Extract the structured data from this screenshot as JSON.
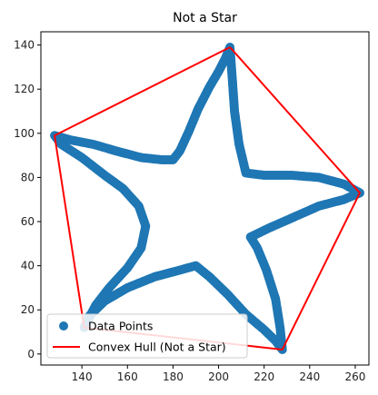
{
  "chart_data": {
    "type": "scatter",
    "title": "Not a Star",
    "xlabel": "",
    "ylabel": "",
    "xlim": [
      122,
      266
    ],
    "ylim": [
      -5,
      146
    ],
    "x_ticks": [
      140,
      160,
      180,
      200,
      220,
      240,
      260
    ],
    "y_ticks": [
      0,
      20,
      40,
      60,
      80,
      100,
      120,
      140
    ],
    "grid": false,
    "legend_position": "lower-left",
    "series": [
      {
        "name": "Data Points",
        "kind": "scatter",
        "color": "#1f77b4",
        "x": [
          205,
          203,
          200,
          196,
          191,
          187,
          183,
          180,
          175,
          166,
          155,
          145,
          135,
          128,
          131,
          140,
          150,
          158,
          165,
          168,
          166,
          160,
          152,
          146,
          141,
          143,
          150,
          160,
          172,
          183,
          190,
          196,
          204,
          212,
          220,
          225,
          228,
          227,
          225,
          221,
          217,
          214,
          222,
          233,
          244,
          255,
          262,
          255,
          244,
          232,
          220,
          212,
          209,
          207,
          206,
          205
        ],
        "y": [
          139,
          134,
          128,
          121,
          111,
          101,
          92,
          88,
          88,
          89,
          92,
          95,
          97,
          99,
          95,
          89,
          81,
          75,
          67,
          58,
          48,
          39,
          30,
          22,
          12,
          17,
          24,
          30,
          35,
          38,
          40,
          35,
          27,
          18,
          11,
          6,
          2,
          12,
          25,
          38,
          48,
          53,
          57,
          62,
          67,
          70,
          73,
          77,
          80,
          81,
          81,
          82,
          95,
          110,
          125,
          139
        ]
      },
      {
        "name": "Convex Hull (Not a Star)",
        "kind": "line",
        "color": "#ff0000",
        "x": [
          205,
          262,
          228,
          141,
          128,
          205
        ],
        "y": [
          139,
          73,
          2,
          12,
          99,
          139
        ]
      }
    ]
  }
}
